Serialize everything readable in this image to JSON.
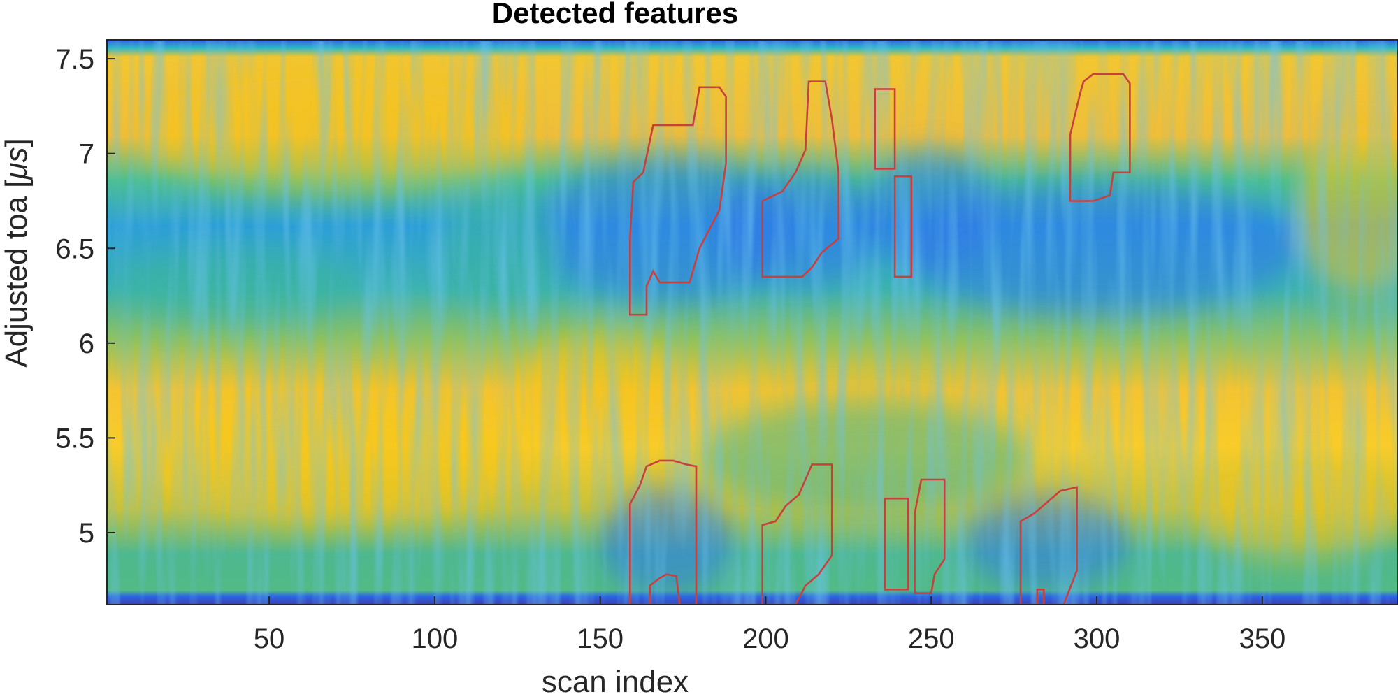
{
  "chart_data": {
    "type": "heatmap",
    "title": "Detected features",
    "xlabel": "scan index",
    "ylabel_prefix": "Adjusted toa [",
    "ylabel_unit": "μs",
    "ylabel_suffix": "]",
    "xlim": [
      1,
      391
    ],
    "ylim": [
      4.62,
      7.6
    ],
    "xticks": [
      50,
      100,
      150,
      200,
      250,
      300,
      350
    ],
    "xtick_labels": [
      "50",
      "100",
      "150",
      "200",
      "250",
      "300",
      "350"
    ],
    "yticks": [
      5,
      5.5,
      6,
      6.5,
      7,
      7.5
    ],
    "ytick_labels": [
      "5",
      "5.5",
      "6",
      "6.5",
      "7",
      "7.5"
    ],
    "colormap": "parula",
    "colors": {
      "contour": "#c8403e",
      "high": "#f5c518",
      "mid": "#38b59a",
      "low": "#2f78e8",
      "edge": "#3e26a8"
    },
    "bands": [
      {
        "name": "edge",
        "y": [
          7.56,
          7.6
        ],
        "level": 0.05
      },
      {
        "name": "upper-bright",
        "y": [
          6.9,
          7.55
        ],
        "level": 0.85
      },
      {
        "name": "upper-dark",
        "y": [
          6.15,
          6.85
        ],
        "level": 0.3
      },
      {
        "name": "lower-bright",
        "y": [
          5.05,
          5.95
        ],
        "level": 0.9
      },
      {
        "name": "lower-dark",
        "y": [
          4.66,
          5.05
        ],
        "level": 0.5
      },
      {
        "name": "edge-bottom",
        "y": [
          4.62,
          4.66
        ],
        "level": 0.05
      }
    ],
    "features": [
      {
        "id": 1,
        "points": [
          [
            159,
            6.15
          ],
          [
            159,
            6.55
          ],
          [
            160,
            6.85
          ],
          [
            163,
            6.9
          ],
          [
            166,
            7.15
          ],
          [
            178,
            7.15
          ],
          [
            180,
            7.35
          ],
          [
            186,
            7.35
          ],
          [
            188,
            7.3
          ],
          [
            188,
            6.95
          ],
          [
            186,
            6.7
          ],
          [
            180,
            6.5
          ],
          [
            177,
            6.32
          ],
          [
            168,
            6.32
          ],
          [
            166,
            6.38
          ],
          [
            164,
            6.3
          ],
          [
            164,
            6.15
          ]
        ]
      },
      {
        "id": 2,
        "points": [
          [
            199,
            6.35
          ],
          [
            199,
            6.75
          ],
          [
            205,
            6.8
          ],
          [
            209,
            6.9
          ],
          [
            212,
            7.02
          ],
          [
            213,
            7.38
          ],
          [
            218,
            7.38
          ],
          [
            220,
            7.18
          ],
          [
            222,
            6.9
          ],
          [
            222,
            6.55
          ],
          [
            217,
            6.48
          ],
          [
            214,
            6.4
          ],
          [
            211,
            6.35
          ]
        ]
      },
      {
        "id": 3,
        "points": [
          [
            233,
            6.92
          ],
          [
            233,
            7.34
          ],
          [
            239,
            7.34
          ],
          [
            239,
            6.92
          ]
        ]
      },
      {
        "id": 4,
        "points": [
          [
            239,
            6.35
          ],
          [
            239,
            6.88
          ],
          [
            244,
            6.88
          ],
          [
            244,
            6.35
          ]
        ]
      },
      {
        "id": 5,
        "points": [
          [
            292,
            6.75
          ],
          [
            292,
            7.1
          ],
          [
            295,
            7.32
          ],
          [
            296,
            7.38
          ],
          [
            299,
            7.42
          ],
          [
            308,
            7.42
          ],
          [
            310,
            7.37
          ],
          [
            310,
            6.9
          ],
          [
            305,
            6.9
          ],
          [
            304,
            6.78
          ],
          [
            299,
            6.75
          ]
        ]
      },
      {
        "id": 6,
        "points": [
          [
            159,
            4.62
          ],
          [
            159,
            5.15
          ],
          [
            162,
            5.25
          ],
          [
            164,
            5.35
          ],
          [
            168,
            5.38
          ],
          [
            172,
            5.38
          ],
          [
            176,
            5.36
          ],
          [
            179,
            5.35
          ],
          [
            179,
            4.62
          ]
        ]
      },
      {
        "id": 7,
        "points": [
          [
            165,
            4.62
          ],
          [
            165,
            4.72
          ],
          [
            168,
            4.76
          ],
          [
            170,
            4.78
          ],
          [
            173,
            4.77
          ],
          [
            174,
            4.62
          ]
        ]
      },
      {
        "id": 8,
        "points": [
          [
            199,
            4.62
          ],
          [
            199,
            5.04
          ],
          [
            203,
            5.06
          ],
          [
            206,
            5.14
          ],
          [
            210,
            5.2
          ],
          [
            212,
            5.28
          ],
          [
            214,
            5.36
          ],
          [
            220,
            5.36
          ],
          [
            220,
            4.88
          ],
          [
            216,
            4.78
          ],
          [
            212,
            4.72
          ],
          [
            209,
            4.62
          ]
        ]
      },
      {
        "id": 9,
        "points": [
          [
            236,
            4.7
          ],
          [
            236,
            5.18
          ],
          [
            243,
            5.18
          ],
          [
            243,
            4.7
          ]
        ]
      },
      {
        "id": 10,
        "points": [
          [
            245,
            4.68
          ],
          [
            245,
            5.1
          ],
          [
            247,
            5.28
          ],
          [
            254,
            5.28
          ],
          [
            254,
            4.86
          ],
          [
            251,
            4.78
          ],
          [
            250,
            4.68
          ]
        ]
      },
      {
        "id": 11,
        "points": [
          [
            277,
            4.62
          ],
          [
            277,
            5.06
          ],
          [
            281,
            5.1
          ],
          [
            285,
            5.16
          ],
          [
            289,
            5.22
          ],
          [
            294,
            5.24
          ],
          [
            294,
            4.8
          ],
          [
            290,
            4.62
          ]
        ]
      },
      {
        "id": 12,
        "points": [
          [
            282,
            4.62
          ],
          [
            282,
            4.7
          ],
          [
            284,
            4.7
          ],
          [
            284,
            4.62
          ]
        ]
      }
    ]
  }
}
